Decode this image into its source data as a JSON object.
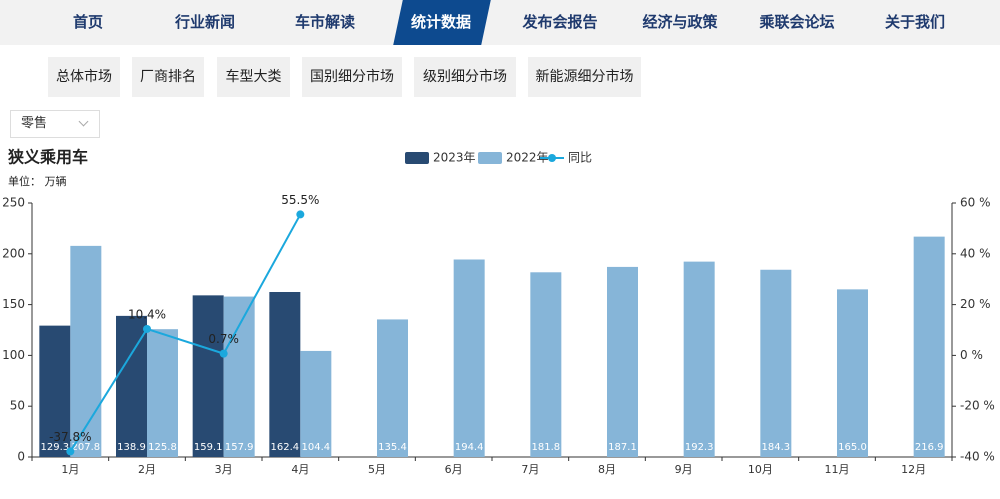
{
  "nav": [
    "首页",
    "行业新闻",
    "车市解读",
    "统计数据",
    "发布会报告",
    "经济与政策",
    "乘联会论坛",
    "关于我们"
  ],
  "tabs": [
    "总体市场",
    "厂商排名",
    "车型大类",
    "国别细分市场",
    "级别细分市场",
    "新能源细分市场"
  ],
  "dropdown": "零售",
  "chart_data": {
    "type": "bar",
    "title": "狭义乘用车",
    "subtitle": "单位： 万辆",
    "categories": [
      "1月",
      "2月",
      "3月",
      "4月",
      "5月",
      "6月",
      "7月",
      "8月",
      "9月",
      "10月",
      "11月",
      "12月"
    ],
    "series": [
      {
        "name": "2023年",
        "color": "#284a72",
        "values": [
          129.3,
          138.9,
          159.1,
          162.4,
          null,
          null,
          null,
          null,
          null,
          null,
          null,
          null
        ],
        "value_labels": [
          "129.3",
          "138.9",
          "159.1",
          "162.4",
          null,
          null,
          null,
          null,
          null,
          null,
          null,
          null
        ]
      },
      {
        "name": "2022年",
        "color": "#86b5d8",
        "values": [
          207.8,
          125.8,
          157.9,
          104.4,
          135.4,
          194.4,
          181.8,
          187.1,
          192.3,
          184.3,
          165.0,
          216.9
        ],
        "value_labels": [
          "207.8",
          "125.8",
          "157.9",
          "104.4",
          "135.4",
          "194.4",
          "181.8",
          "187.1",
          "192.3",
          "184.3",
          "165.0",
          "216.9"
        ]
      },
      {
        "name": "同比",
        "type": "line",
        "axis": "y2",
        "color": "#1ba8dd",
        "values": [
          -37.8,
          10.4,
          0.7,
          55.5,
          null,
          null,
          null,
          null,
          null,
          null,
          null,
          null
        ],
        "value_labels": [
          "-37.8%",
          "10.4%",
          "0.7%",
          "55.5%",
          null,
          null,
          null,
          null,
          null,
          null,
          null,
          null
        ]
      }
    ],
    "ylim": [
      0,
      250
    ],
    "yticks": [
      0,
      50,
      100,
      150,
      200,
      250
    ],
    "y2lim": [
      -40,
      60
    ],
    "y2ticks": [
      {
        "value": -40,
        "label": "-40 %"
      },
      {
        "value": -20,
        "label": "-20 %"
      },
      {
        "value": 0,
        "label": "0 %"
      },
      {
        "value": 20,
        "label": "20 %"
      },
      {
        "value": 40,
        "label": "40 %"
      },
      {
        "value": 60,
        "label": "60 %"
      }
    ]
  }
}
